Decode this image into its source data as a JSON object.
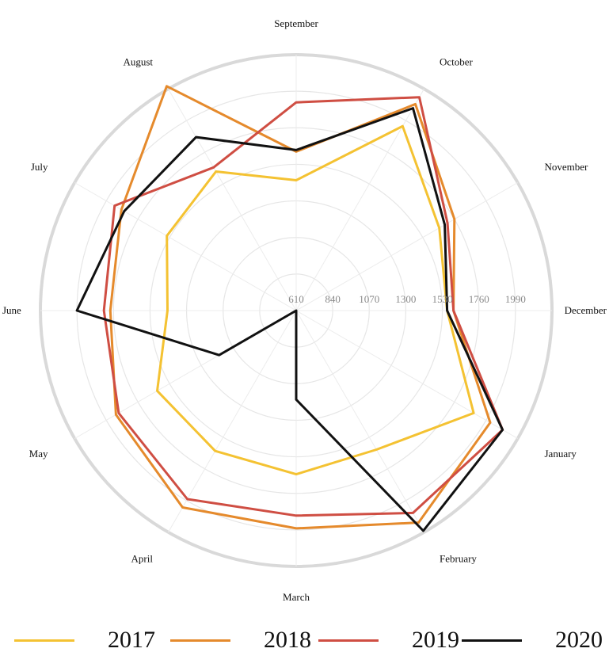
{
  "chart_data": {
    "type": "radar",
    "categories": [
      "September",
      "October",
      "November",
      "December",
      "January",
      "February",
      "March",
      "April",
      "May",
      "June",
      "July",
      "August"
    ],
    "radial_ticks": [
      "610",
      "840",
      "1070",
      "1300",
      "1530",
      "1760",
      "1990"
    ],
    "rlim": [
      610,
      2220
    ],
    "series": [
      {
        "name": "2017",
        "color": "#f4c232",
        "values": [
          1430,
          1950,
          1650,
          1560,
          1900,
          1620,
          1640,
          1630,
          1620,
          1420,
          1550,
          1620
        ]
      },
      {
        "name": "2018",
        "color": "#e58a2c",
        "values": [
          1610,
          2110,
          1760,
          1600,
          2020,
          2150,
          1980,
          2040,
          1920,
          1780,
          1880,
          2240
        ]
      },
      {
        "name": "2019",
        "color": "#cf4e43",
        "values": [
          1920,
          2160,
          1710,
          1600,
          2110,
          2080,
          1900,
          1980,
          1900,
          1820,
          1930,
          1650
        ]
      },
      {
        "name": "2020",
        "color": "#111111",
        "values": [
          1620,
          2080,
          1690,
          1560,
          2110,
          2210,
          1170,
          610,
          1170,
          1990,
          1860,
          1870
        ]
      }
    ]
  }
}
